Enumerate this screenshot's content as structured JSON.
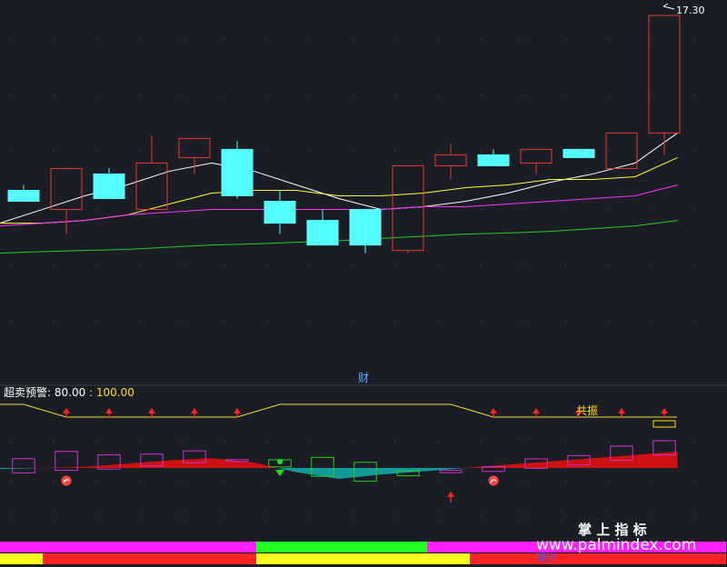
{
  "chart_data": {
    "type": "candlestick",
    "main": {
      "price_label": "17.30",
      "tag": "财",
      "ylim": [
        10.6,
        17.5
      ],
      "candles": [
        {
          "open": 13.9,
          "close": 14.1,
          "high": 14.2,
          "low": 13.9,
          "up": false
        },
        {
          "open": 13.75,
          "close": 14.5,
          "high": 14.5,
          "low": 13.3,
          "up": true
        },
        {
          "open": 14.4,
          "close": 13.95,
          "high": 14.5,
          "low": 13.95,
          "up": false
        },
        {
          "open": 13.75,
          "close": 14.6,
          "high": 15.1,
          "low": 13.75,
          "up": true
        },
        {
          "open": 14.7,
          "close": 15.05,
          "high": 15.05,
          "low": 14.4,
          "up": true
        },
        {
          "open": 14.85,
          "close": 14.0,
          "high": 15.0,
          "low": 13.95,
          "up": false
        },
        {
          "open": 13.9,
          "close": 13.5,
          "high": 14.1,
          "low": 13.3,
          "up": false
        },
        {
          "open": 13.55,
          "close": 13.1,
          "high": 13.75,
          "low": 13.1,
          "up": false
        },
        {
          "open": 13.75,
          "close": 13.1,
          "high": 13.75,
          "low": 12.95,
          "up": false
        },
        {
          "open": 13.0,
          "close": 14.55,
          "high": 14.55,
          "low": 12.95,
          "up": true
        },
        {
          "open": 14.55,
          "close": 14.75,
          "high": 14.95,
          "low": 14.3,
          "up": true
        },
        {
          "open": 14.75,
          "close": 14.55,
          "high": 14.85,
          "low": 14.55,
          "up": false
        },
        {
          "open": 14.6,
          "close": 14.85,
          "high": 14.85,
          "low": 14.4,
          "up": true
        },
        {
          "open": 14.85,
          "close": 14.7,
          "high": 14.85,
          "low": 14.7,
          "up": false
        },
        {
          "open": 14.5,
          "close": 15.15,
          "high": 15.15,
          "low": 14.5,
          "up": true
        },
        {
          "open": 15.15,
          "close": 17.3,
          "high": 17.3,
          "low": 14.75,
          "up": true
        }
      ],
      "ma_series": [
        {
          "color": "#ffffff",
          "values": [
            13.5,
            13.75,
            14.0,
            14.2,
            14.45,
            14.6,
            14.45,
            14.2,
            13.95,
            13.75,
            13.8,
            13.9,
            14.05,
            14.25,
            14.4,
            14.6,
            15.15
          ]
        },
        {
          "color": "#ffff33",
          "values": [
            13.5,
            13.5,
            13.55,
            13.65,
            13.85,
            14.05,
            14.1,
            14.1,
            14.0,
            14.0,
            14.05,
            14.15,
            14.2,
            14.3,
            14.3,
            14.35,
            14.7
          ]
        },
        {
          "color": "#ff33ff",
          "values": [
            13.45,
            13.5,
            13.55,
            13.65,
            13.7,
            13.75,
            13.75,
            13.75,
            13.75,
            13.75,
            13.8,
            13.8,
            13.85,
            13.9,
            13.95,
            14.0,
            14.2
          ]
        },
        {
          "color": "#22cc22",
          "values": [
            12.95,
            12.98,
            13.0,
            13.02,
            13.06,
            13.1,
            13.12,
            13.15,
            13.18,
            13.22,
            13.26,
            13.3,
            13.32,
            13.35,
            13.4,
            13.45,
            13.55
          ]
        }
      ]
    },
    "indicator": {
      "title_label": "超卖预警",
      "title_value": "80.00",
      "value2": "100.00",
      "resonance_label": "共振",
      "alert_line": [
        0,
        -1,
        -1,
        -1,
        -1,
        -1,
        0,
        0,
        0,
        0,
        0,
        -1,
        -1,
        -1,
        -1,
        -1
      ],
      "up_arrows": [
        1,
        2,
        3,
        4,
        5,
        11,
        12,
        13,
        14,
        15
      ],
      "histogram": [
        -2,
        0,
        2,
        8,
        14,
        18,
        10,
        -8,
        -20,
        -12,
        -6,
        0,
        6,
        12,
        18,
        24,
        30
      ],
      "boxes": [
        {
          "i": 0,
          "val": -5,
          "h": 6,
          "color": "#cc33cc"
        },
        {
          "i": 1,
          "val": 1,
          "h": 8,
          "color": "#cc33cc"
        },
        {
          "i": 2,
          "val": 2,
          "h": 6,
          "color": "#cc33cc"
        },
        {
          "i": 3,
          "val": 7,
          "h": 5,
          "color": "#cc33cc"
        },
        {
          "i": 4,
          "val": 13,
          "h": 5,
          "color": "#cc33cc"
        },
        {
          "i": 5,
          "val": 14,
          "h": 0.4,
          "color": "#cc33cc"
        },
        {
          "i": 6,
          "val": 4,
          "h": 3,
          "color": "#22cc22"
        },
        {
          "i": 7,
          "val": -10,
          "h": 8,
          "color": "#22cc22"
        },
        {
          "i": 8,
          "val": -19,
          "h": 8,
          "color": "#22cc22"
        },
        {
          "i": 9,
          "val": -13,
          "h": 2,
          "color": "#22cc22"
        },
        {
          "i": 10,
          "val": -8,
          "h": 1,
          "color": "#cc33cc"
        },
        {
          "i": 11,
          "val": -5,
          "h": 2,
          "color": "#cc33cc"
        },
        {
          "i": 12,
          "val": 2,
          "h": 4,
          "color": "#cc33cc"
        },
        {
          "i": 13,
          "val": 8,
          "h": 4,
          "color": "#cc33cc"
        },
        {
          "i": 14,
          "val": 18,
          "h": 6,
          "color": "#cc33cc"
        },
        {
          "i": 15,
          "val": 28,
          "h": 6,
          "color": "#cc33cc"
        }
      ],
      "dots": [
        1,
        11
      ],
      "down_arrow_index": 6,
      "small_up_arrow_index": 10,
      "yellow_box_index": 15
    },
    "bottom_bars": {
      "row1": [
        {
          "span": [
            0,
            6
          ],
          "color": "#ff22ff"
        },
        {
          "span": [
            6,
            10
          ],
          "color": "#22ff22"
        },
        {
          "span": [
            10,
            17
          ],
          "color": "#ff22ff"
        }
      ],
      "row2": [
        {
          "span": [
            0,
            1
          ],
          "color": "#ffff22"
        },
        {
          "span": [
            1,
            6
          ],
          "color": "#ff2222"
        },
        {
          "span": [
            6,
            11
          ],
          "color": "#ffff22"
        },
        {
          "span": [
            11,
            17
          ],
          "color": "#ff2222"
        }
      ],
      "label": "潮汐"
    }
  },
  "watermark": {
    "cn": "掌 上 指 标",
    "url": "www.palmindex.com"
  },
  "colors": {
    "background": "#1b1d24",
    "up_candle": "#e53935",
    "down_candle": "#55ffff",
    "accent_yellow": "#ffe000"
  }
}
